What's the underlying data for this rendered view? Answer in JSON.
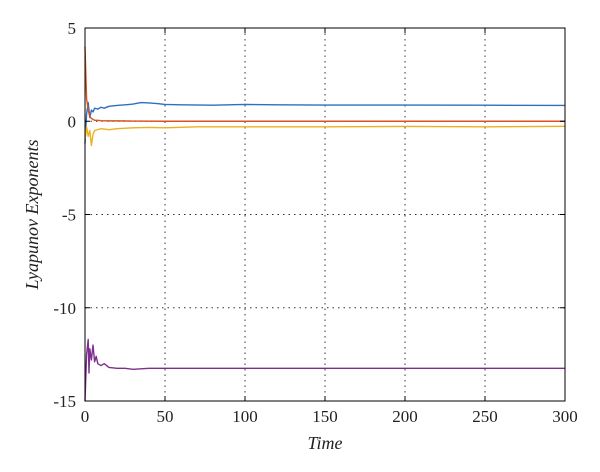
{
  "chart_data": {
    "type": "line",
    "title": "",
    "xlabel": "Time",
    "ylabel": "Lyapunov Exponents",
    "xlim": [
      0,
      300
    ],
    "ylim": [
      -15,
      5
    ],
    "xticks": [
      0,
      50,
      100,
      150,
      200,
      250,
      300
    ],
    "yticks": [
      5,
      0,
      -5,
      -10,
      -15
    ],
    "grid": "dotted",
    "legend": "none",
    "series": [
      {
        "color": "#2e6fbf",
        "x": [
          0,
          1,
          2,
          3,
          4,
          5,
          6,
          8,
          10,
          12,
          15,
          20,
          25,
          30,
          35,
          40,
          45,
          50,
          60,
          80,
          100,
          120,
          150,
          200,
          250,
          300
        ],
        "values": [
          -1.2,
          0.4,
          1.0,
          0.2,
          0.6,
          0.5,
          0.7,
          0.65,
          0.75,
          0.7,
          0.8,
          0.85,
          0.88,
          0.92,
          1.0,
          0.98,
          0.95,
          0.9,
          0.88,
          0.86,
          0.9,
          0.88,
          0.87,
          0.87,
          0.86,
          0.85
        ]
      },
      {
        "color": "#d9531e",
        "x": [
          0,
          1,
          2,
          3,
          4,
          5,
          6,
          8,
          10,
          15,
          20,
          30,
          50,
          100,
          150,
          200,
          250,
          300
        ],
        "values": [
          4.0,
          1.2,
          0.6,
          0.25,
          0.15,
          0.1,
          0.05,
          0.05,
          0.03,
          0.02,
          0.02,
          0.01,
          0.0,
          0.0,
          0.0,
          0.0,
          0.0,
          0.0
        ]
      },
      {
        "color": "#edb120",
        "x": [
          0,
          1,
          2,
          3,
          4,
          5,
          6,
          8,
          10,
          15,
          20,
          30,
          40,
          50,
          70,
          100,
          150,
          200,
          250,
          300
        ],
        "values": [
          -1.0,
          -0.3,
          -0.8,
          -0.5,
          -1.3,
          -0.7,
          -0.5,
          -0.45,
          -0.4,
          -0.45,
          -0.4,
          -0.35,
          -0.33,
          -0.35,
          -0.3,
          -0.3,
          -0.3,
          -0.28,
          -0.3,
          -0.27
        ]
      },
      {
        "color": "#7e2f8e",
        "x": [
          0,
          1,
          2,
          2.5,
          3,
          4,
          5,
          6,
          7,
          8,
          10,
          12,
          15,
          20,
          25,
          30,
          40,
          50,
          70,
          100,
          150,
          200,
          250,
          300
        ],
        "values": [
          -15.0,
          -12.5,
          -11.7,
          -13.5,
          -12.2,
          -12.8,
          -12.0,
          -12.9,
          -12.6,
          -13.0,
          -13.1,
          -13.0,
          -13.2,
          -13.25,
          -13.25,
          -13.3,
          -13.25,
          -13.25,
          -13.25,
          -13.25,
          -13.25,
          -13.25,
          -13.25,
          -13.25
        ]
      }
    ]
  }
}
